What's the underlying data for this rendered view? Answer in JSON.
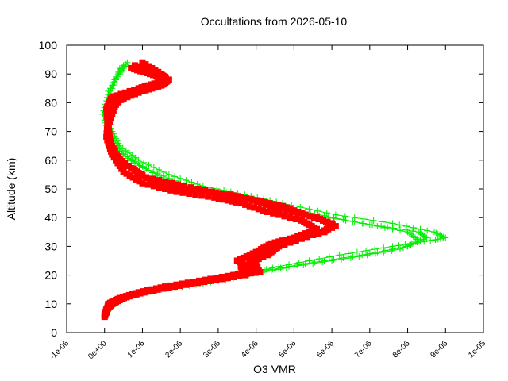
{
  "chart_data": {
    "type": "scatter",
    "title": "Occultations from 2026-05-10",
    "xlabel": "O3 VMR",
    "ylabel": "Altitude (km)",
    "xlim": [
      -1e-06,
      1e-05
    ],
    "ylim": [
      0,
      100
    ],
    "x_ticks": [
      -1e-06,
      0,
      1e-06,
      2e-06,
      3e-06,
      4e-06,
      5e-06,
      6e-06,
      7e-06,
      8e-06,
      9e-06,
      1e-05
    ],
    "x_tick_labels": [
      "-1e-06",
      "0e+00",
      "1e-06",
      "2e-06",
      "3e-06",
      "4e-06",
      "5e-06",
      "6e-06",
      "7e-06",
      "8e-06",
      "9e-06",
      "1e-05"
    ],
    "y_ticks": [
      0,
      10,
      20,
      30,
      40,
      50,
      60,
      70,
      80,
      90,
      100
    ],
    "y_tick_labels": [
      "0",
      "10",
      "20",
      "30",
      "40",
      "50",
      "60",
      "70",
      "80",
      "90",
      "100"
    ],
    "grid": false,
    "legend": "none",
    "series": [
      {
        "color": "#00ee00",
        "marker": "plus",
        "profiles": [
          {
            "x": [
              5e-08,
              1e-07,
              3e-07,
              7e-07,
              1.2e-06,
              2.3e-06,
              3.6e-06,
              4.6e-06,
              6.2e-06,
              7.6e-06,
              8.6e-06,
              9e-06,
              8.7e-06,
              7.6e-06,
              6.1e-06,
              4.7e-06,
              3.7e-06,
              2.6e-06,
              1.7e-06,
              9e-07,
              4e-07,
              2e-07,
              5e-08,
              1e-07,
              4e-07,
              6e-07
            ],
            "y": [
              6,
              8,
              11,
              13,
              15,
              17,
              20,
              23,
              27,
              30,
              32,
              33,
              35,
              38,
              41,
              45,
              48,
              51,
              55,
              60,
              65,
              70,
              77,
              84,
              90,
              94
            ]
          },
          {
            "x": [
              5e-08,
              2e-07,
              5e-07,
              1e-06,
              1.7e-06,
              2.8e-06,
              4e-06,
              5.3e-06,
              6.8e-06,
              8e-06,
              8.5e-06,
              8.3e-06,
              7.3e-06,
              5.9e-06,
              4.5e-06,
              3.4e-06,
              2.4e-06,
              1.5e-06,
              8e-07,
              3e-07,
              1e-07,
              -5e-08,
              1e-07,
              3e-07,
              5e-07
            ],
            "y": [
              7,
              9,
              12,
              14,
              16,
              18,
              21,
              24,
              27,
              30,
              33,
              35,
              37,
              40,
              44,
              47,
              50,
              54,
              59,
              64,
              70,
              76,
              83,
              89,
              93
            ]
          },
          {
            "x": [
              1e-07,
              3e-07,
              8e-07,
              1.5e-06,
              2.6e-06,
              3.8e-06,
              5e-06,
              6.5e-06,
              7.8e-06,
              8.3e-06,
              8e-06,
              6.8e-06,
              5.3e-06,
              4.1e-06,
              3e-06,
              2e-06,
              1.1e-06,
              5e-07,
              2e-07,
              0.0,
              2e-07,
              4e-07
            ],
            "y": [
              8,
              11,
              13,
              15,
              17,
              20,
              23,
              26,
              29,
              32,
              35,
              38,
              42,
              46,
              49,
              52,
              57,
              62,
              68,
              75,
              85,
              92
            ]
          }
        ]
      },
      {
        "color": "#ff0000",
        "marker": "square",
        "profiles": [
          {
            "x": [
              0.0,
              5e-08,
              2e-07,
              5e-07,
              1e-06,
              1.8e-06,
              2.8e-06,
              3.7e-06,
              3.6e-06,
              4.3e-06,
              4.6e-06,
              5.5e-06,
              6.1e-06,
              5.6e-06,
              4.6e-06,
              3.9e-06,
              3.3e-06,
              2.2e-06,
              1.2e-06,
              6e-07,
              2e-07,
              1e-07,
              5e-08,
              2e-07,
              9e-07,
              1.4e-06,
              1.6e-06,
              1.3e-06,
              8e-07
            ],
            "y": [
              5.5,
              8,
              10,
              12,
              14,
              16,
              18,
              20,
              23,
              27,
              30,
              34,
              37,
              40,
              43,
              46,
              48,
              50,
              53,
              58,
              63,
              70,
              78,
              82,
              85,
              87,
              89,
              91,
              93
            ]
          },
          {
            "x": [
              0.0,
              1e-07,
              3e-07,
              7e-07,
              1.4e-06,
              2.3e-06,
              3.2e-06,
              3.9e-06,
              3.5e-06,
              4e-06,
              4.4e-06,
              5e-06,
              5.6e-06,
              5.2e-06,
              4.3e-06,
              3.6e-06,
              2.9e-06,
              1.9e-06,
              1e-06,
              5e-07,
              2e-07,
              5e-08,
              1e-07,
              4e-07,
              1e-06,
              1.5e-06,
              1.7e-06,
              1.2e-06,
              7e-07
            ],
            "y": [
              6,
              9,
              11,
              13,
              15,
              17,
              19,
              22,
              25,
              28,
              31,
              33,
              36,
              39,
              42,
              45,
              47,
              49,
              52,
              56,
              62,
              68,
              76,
              81,
              84,
              86,
              88,
              90,
              92
            ]
          },
          {
            "x": [
              5e-08,
              1e-07,
              4e-07,
              9e-07,
              1.6e-06,
              2.5e-06,
              3.4e-06,
              4.1e-06,
              3.9e-06,
              4.3e-06,
              4.9e-06,
              5.8e-06,
              6e-06,
              5.3e-06,
              4.7e-06,
              4e-06,
              3.2e-06,
              2.1e-06,
              1.1e-06,
              4e-07,
              1.5e-07,
              1e-07,
              3e-07,
              7e-07,
              1.2e-06,
              1.6e-06,
              1.5e-06,
              1e-06
            ],
            "y": [
              7,
              10,
              12,
              14,
              16,
              18,
              20,
              21,
              26,
              29,
              32,
              35,
              38,
              41,
              44,
              46,
              48,
              51,
              54,
              60,
              66,
              72,
              80,
              83,
              85,
              87,
              90,
              94
            ]
          }
        ]
      }
    ]
  }
}
